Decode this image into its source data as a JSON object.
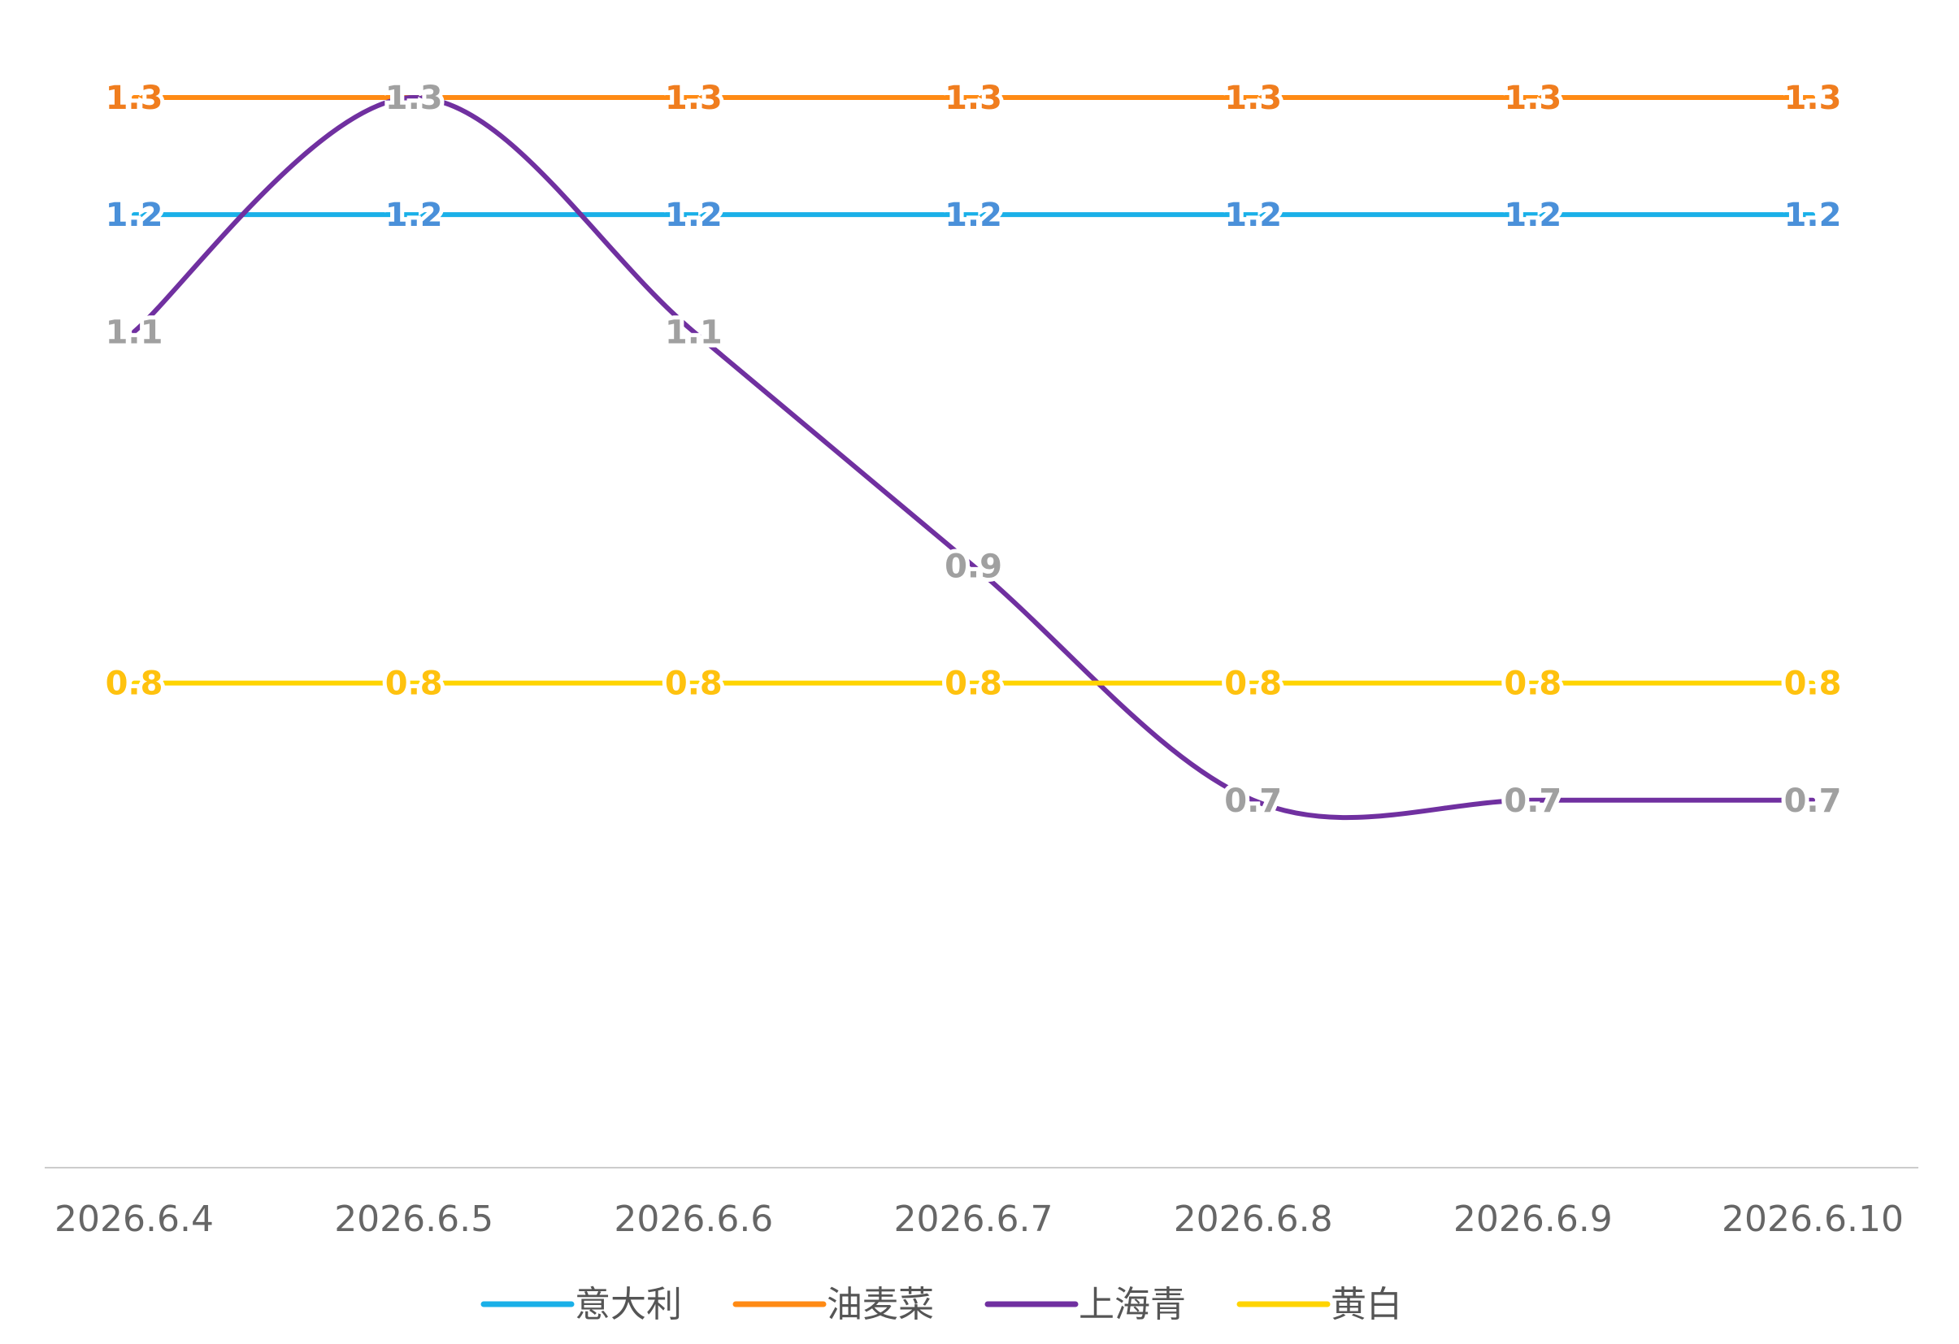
{
  "chart_data": {
    "type": "line",
    "categories": [
      "2026.6.4",
      "2026.6.5",
      "2026.6.6",
      "2026.6.7",
      "2026.6.8",
      "2026.6.9",
      "2026.6.10"
    ],
    "series": [
      {
        "name": "意大利",
        "color": "#1ab0e8",
        "label_color": "#4a90d9",
        "values": [
          1.2,
          1.2,
          1.2,
          1.2,
          1.2,
          1.2,
          1.2
        ]
      },
      {
        "name": "油麦菜",
        "color": "#ff8a14",
        "label_color": "#f07d1e",
        "values": [
          1.3,
          1.3,
          1.3,
          1.3,
          1.3,
          1.3,
          1.3
        ]
      },
      {
        "name": "上海青",
        "color": "#7030a0",
        "label_color": "#a0a0a0",
        "values": [
          1.1,
          1.3,
          1.1,
          0.9,
          0.7,
          0.7,
          0.7
        ]
      },
      {
        "name": "黄白",
        "color": "#ffd400",
        "label_color": "#ffc20e",
        "values": [
          0.8,
          0.8,
          0.8,
          0.8,
          0.8,
          0.8,
          0.8
        ]
      }
    ],
    "ylim": [
      0.5,
      1.3
    ],
    "grid": false,
    "legend_position": "bottom-center",
    "title": "",
    "xlabel": "",
    "ylabel": "",
    "axis_color": "#cccccc"
  }
}
